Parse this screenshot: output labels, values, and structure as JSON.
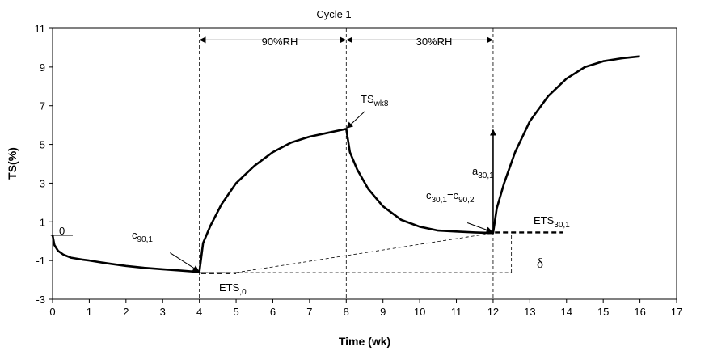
{
  "chart_data": {
    "type": "line",
    "title": "Cycle 1",
    "xlabel": "Time (wk)",
    "ylabel": "TS(%)",
    "xlim": [
      0,
      17
    ],
    "ylim": [
      -3,
      11
    ],
    "x_ticks": [
      0,
      1,
      2,
      3,
      4,
      5,
      6,
      7,
      8,
      9,
      10,
      11,
      12,
      13,
      14,
      15,
      16,
      17
    ],
    "y_ticks": [
      -3,
      -1,
      1,
      3,
      5,
      7,
      9,
      11
    ],
    "grid": false,
    "series": [
      {
        "x": [
          0,
          0.05,
          0.15,
          0.3,
          0.5,
          0.8,
          1.0,
          1.5,
          2.0,
          2.5,
          3.0,
          3.5,
          3.9,
          4.0,
          4.1,
          4.3,
          4.6,
          5.0,
          5.5,
          6.0,
          6.5,
          7.0,
          7.5,
          8.0,
          8.1,
          8.3,
          8.6,
          9.0,
          9.5,
          10.0,
          10.5,
          11.0,
          11.5,
          12.0,
          12.1,
          12.3,
          12.6,
          13.0,
          13.5,
          14.0,
          14.5,
          15.0,
          15.5,
          16.0
        ],
        "y": [
          0.3,
          -0.2,
          -0.5,
          -0.7,
          -0.85,
          -0.95,
          -1.0,
          -1.15,
          -1.28,
          -1.38,
          -1.45,
          -1.52,
          -1.58,
          -1.6,
          -0.1,
          0.8,
          1.9,
          3.0,
          3.9,
          4.6,
          5.1,
          5.4,
          5.6,
          5.8,
          4.6,
          3.7,
          2.7,
          1.8,
          1.1,
          0.75,
          0.55,
          0.5,
          0.45,
          0.42,
          1.7,
          3.0,
          4.6,
          6.2,
          7.5,
          8.4,
          9.0,
          9.3,
          9.45,
          9.55
        ]
      }
    ],
    "annotations": {
      "segment_90": "90%RH",
      "segment_30": "30%RH",
      "zero_label": "0",
      "c90_main": "c",
      "c90_sub": "90,1",
      "ets0_main": "ETS",
      "ets0_sub": ",0",
      "tswk8_main": "TS",
      "tswk8_sub": "wk8",
      "a30_main": "a",
      "a30_sub": "30,1",
      "c30_main1": "c",
      "c30_sub1": "30,1",
      "c30_eq": "=c",
      "c30_sub2": "90,2",
      "ets30_main": "ETS",
      "ets30_sub": "30,1",
      "delta": "δ"
    }
  }
}
